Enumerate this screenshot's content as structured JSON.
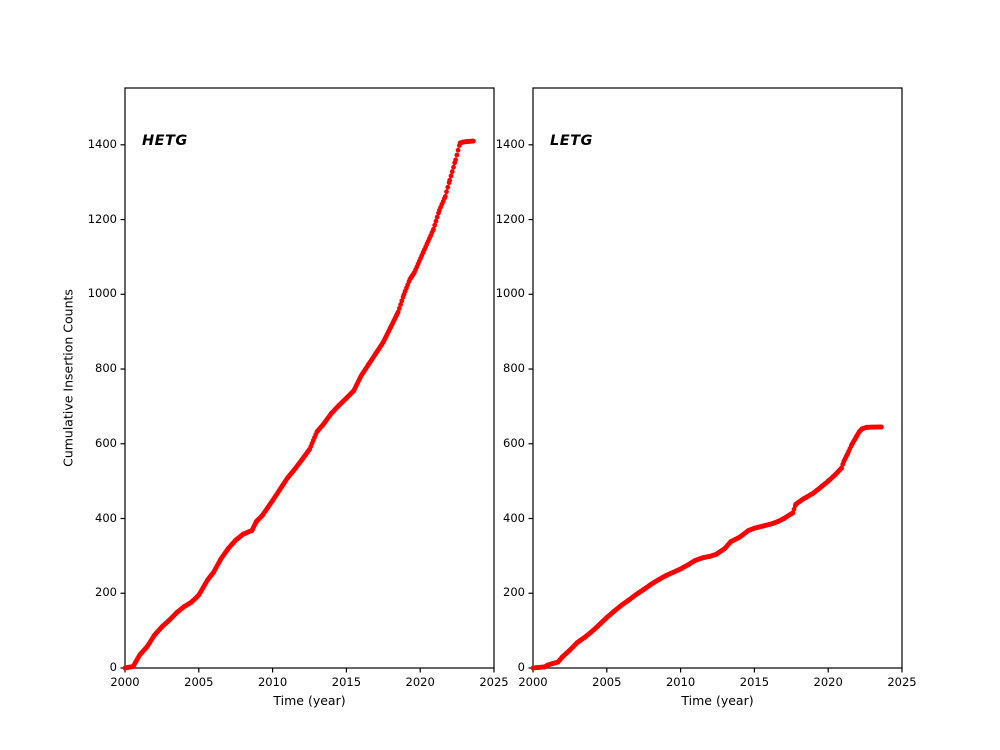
{
  "figure": {
    "background_color": "#ffffff",
    "axes_color": "#000000"
  },
  "chart_data": [
    {
      "type": "scatter",
      "title": "HETG",
      "xlabel": "Time (year)",
      "ylabel": "Cumulative Insertion Counts",
      "xlim": [
        2000,
        2025
      ],
      "ylim": [
        0,
        1552
      ],
      "xticks": [
        2000,
        2005,
        2010,
        2015,
        2020,
        2025
      ],
      "yticks": [
        0,
        200,
        400,
        600,
        800,
        1000,
        1200,
        1400
      ],
      "grid": false,
      "legend": "none",
      "marker": {
        "color": "#ff0000",
        "radius_px": 2.4
      },
      "series": [
        {
          "name": "HETG cumulative insertions",
          "points": [
            [
              2000,
              0
            ],
            [
              2000.55,
              4
            ],
            [
              2001,
              35
            ],
            [
              2001.5,
              57
            ],
            [
              2002,
              88
            ],
            [
              2002.5,
              110
            ],
            [
              2003,
              128
            ],
            [
              2003.5,
              148
            ],
            [
              2004,
              164
            ],
            [
              2004.5,
              176
            ],
            [
              2005,
              195
            ],
            [
              2005.6,
              236
            ],
            [
              2006,
              256
            ],
            [
              2006.5,
              292
            ],
            [
              2007,
              320
            ],
            [
              2007.5,
              342
            ],
            [
              2008,
              358
            ],
            [
              2008.6,
              368
            ],
            [
              2008.9,
              392
            ],
            [
              2009.3,
              408
            ],
            [
              2010,
              448
            ],
            [
              2010.7,
              490
            ],
            [
              2011,
              508
            ],
            [
              2011.5,
              532
            ],
            [
              2012,
              558
            ],
            [
              2012.5,
              585
            ],
            [
              2013,
              632
            ],
            [
              2013.4,
              650
            ],
            [
              2014,
              682
            ],
            [
              2014.5,
              703
            ],
            [
              2015,
              722
            ],
            [
              2015.5,
              742
            ],
            [
              2016,
              782
            ],
            [
              2016.5,
              812
            ],
            [
              2017,
              842
            ],
            [
              2017.5,
              872
            ],
            [
              2018,
              912
            ],
            [
              2018.5,
              952
            ],
            [
              2018.9,
              1000
            ],
            [
              2019.3,
              1040
            ],
            [
              2019.6,
              1058
            ],
            [
              2020.2,
              1112
            ],
            [
              2020.9,
              1174
            ],
            [
              2021.3,
              1225
            ],
            [
              2021.7,
              1262
            ],
            [
              2022,
              1305
            ],
            [
              2022.4,
              1360
            ],
            [
              2022.7,
              1405
            ],
            [
              2023,
              1408
            ],
            [
              2023.6,
              1410
            ]
          ]
        }
      ]
    },
    {
      "type": "scatter",
      "title": "LETG",
      "xlabel": "Time (year)",
      "ylabel": "",
      "xlim": [
        2000,
        2025
      ],
      "ylim": [
        0,
        1552
      ],
      "xticks": [
        2000,
        2005,
        2010,
        2015,
        2020,
        2025
      ],
      "yticks": [
        0,
        200,
        400,
        600,
        800,
        1000,
        1200,
        1400
      ],
      "grid": false,
      "legend": "none",
      "marker": {
        "color": "#ff0000",
        "radius_px": 2.4
      },
      "series": [
        {
          "name": "LETG cumulative insertions",
          "points": [
            [
              2000,
              0
            ],
            [
              2000.8,
              3
            ],
            [
              2001,
              8
            ],
            [
              2001.7,
              16
            ],
            [
              2002,
              30
            ],
            [
              2002.5,
              48
            ],
            [
              2003,
              68
            ],
            [
              2003.5,
              82
            ],
            [
              2004,
              98
            ],
            [
              2004.5,
              116
            ],
            [
              2005,
              135
            ],
            [
              2005.5,
              152
            ],
            [
              2006,
              168
            ],
            [
              2006.5,
              182
            ],
            [
              2007,
              197
            ],
            [
              2007.5,
              210
            ],
            [
              2008,
              224
            ],
            [
              2008.5,
              236
            ],
            [
              2009,
              247
            ],
            [
              2009.5,
              256
            ],
            [
              2010,
              265
            ],
            [
              2010.5,
              276
            ],
            [
              2011,
              288
            ],
            [
              2011.5,
              295
            ],
            [
              2012,
              299
            ],
            [
              2012.4,
              304
            ],
            [
              2013,
              320
            ],
            [
              2013.4,
              338
            ],
            [
              2014,
              350
            ],
            [
              2014.6,
              368
            ],
            [
              2015,
              374
            ],
            [
              2015.6,
              380
            ],
            [
              2016.2,
              386
            ],
            [
              2016.6,
              392
            ],
            [
              2017,
              400
            ],
            [
              2017.6,
              415
            ],
            [
              2017.8,
              438
            ],
            [
              2018.3,
              452
            ],
            [
              2019,
              468
            ],
            [
              2019.6,
              487
            ],
            [
              2020,
              500
            ],
            [
              2020.5,
              518
            ],
            [
              2020.9,
              535
            ],
            [
              2021.05,
              552
            ],
            [
              2021.3,
              572
            ],
            [
              2021.6,
              598
            ],
            [
              2021.9,
              618
            ],
            [
              2022.1,
              632
            ],
            [
              2022.3,
              640
            ],
            [
              2022.6,
              644
            ],
            [
              2023.6,
              645
            ]
          ]
        }
      ]
    }
  ]
}
